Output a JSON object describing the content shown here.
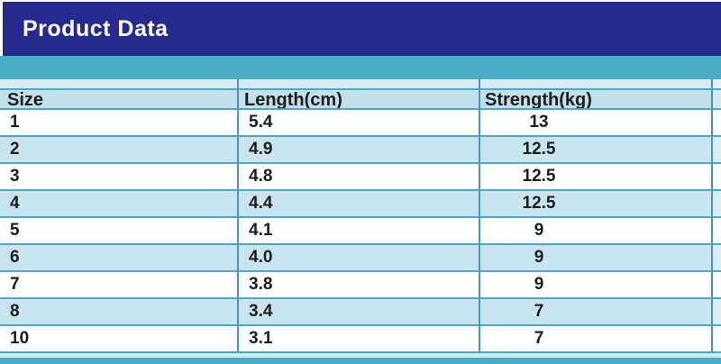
{
  "banner": {
    "title": "Product Data"
  },
  "table": {
    "columns": [
      "Size",
      "Length(cm)",
      "Strength(kg)"
    ],
    "rows": [
      {
        "size": "1",
        "length": "5.4",
        "strength": "13"
      },
      {
        "size": "2",
        "length": "4.9",
        "strength": "12.5"
      },
      {
        "size": "3",
        "length": "4.8",
        "strength": "12.5"
      },
      {
        "size": "4",
        "length": "4.4",
        "strength": "12.5"
      },
      {
        "size": "5",
        "length": "4.1",
        "strength": "9"
      },
      {
        "size": "6",
        "length": "4.0",
        "strength": "9"
      },
      {
        "size": "7",
        "length": "3.8",
        "strength": "9"
      },
      {
        "size": "8",
        "length": "3.4",
        "strength": "7"
      },
      {
        "size": "10",
        "length": "3.1",
        "strength": "7"
      }
    ]
  },
  "colors": {
    "banner_bg": "#262a8e",
    "banner_text": "#ffffff",
    "teal_band": "#4aadc6",
    "header_row_bg": "#c3dfea",
    "alt_row_bg": "#c8e4ef",
    "vertical_border": "#4696b9",
    "horizontal_border": "#4da8c5",
    "text": "#1c1c1c"
  },
  "chart_data": {
    "type": "table",
    "title": "Product Data",
    "columns": [
      "Size",
      "Length(cm)",
      "Strength(kg)"
    ],
    "rows": [
      [
        1,
        5.4,
        13
      ],
      [
        2,
        4.9,
        12.5
      ],
      [
        3,
        4.8,
        12.5
      ],
      [
        4,
        4.4,
        12.5
      ],
      [
        5,
        4.1,
        9
      ],
      [
        6,
        4.0,
        9
      ],
      [
        7,
        3.8,
        9
      ],
      [
        8,
        3.4,
        7
      ],
      [
        10,
        3.1,
        7
      ]
    ],
    "layout_hints": {
      "row_striping": "white / light-blue alternating starting white",
      "strength_column_alignment": "center",
      "size_length_alignment": "left"
    }
  }
}
